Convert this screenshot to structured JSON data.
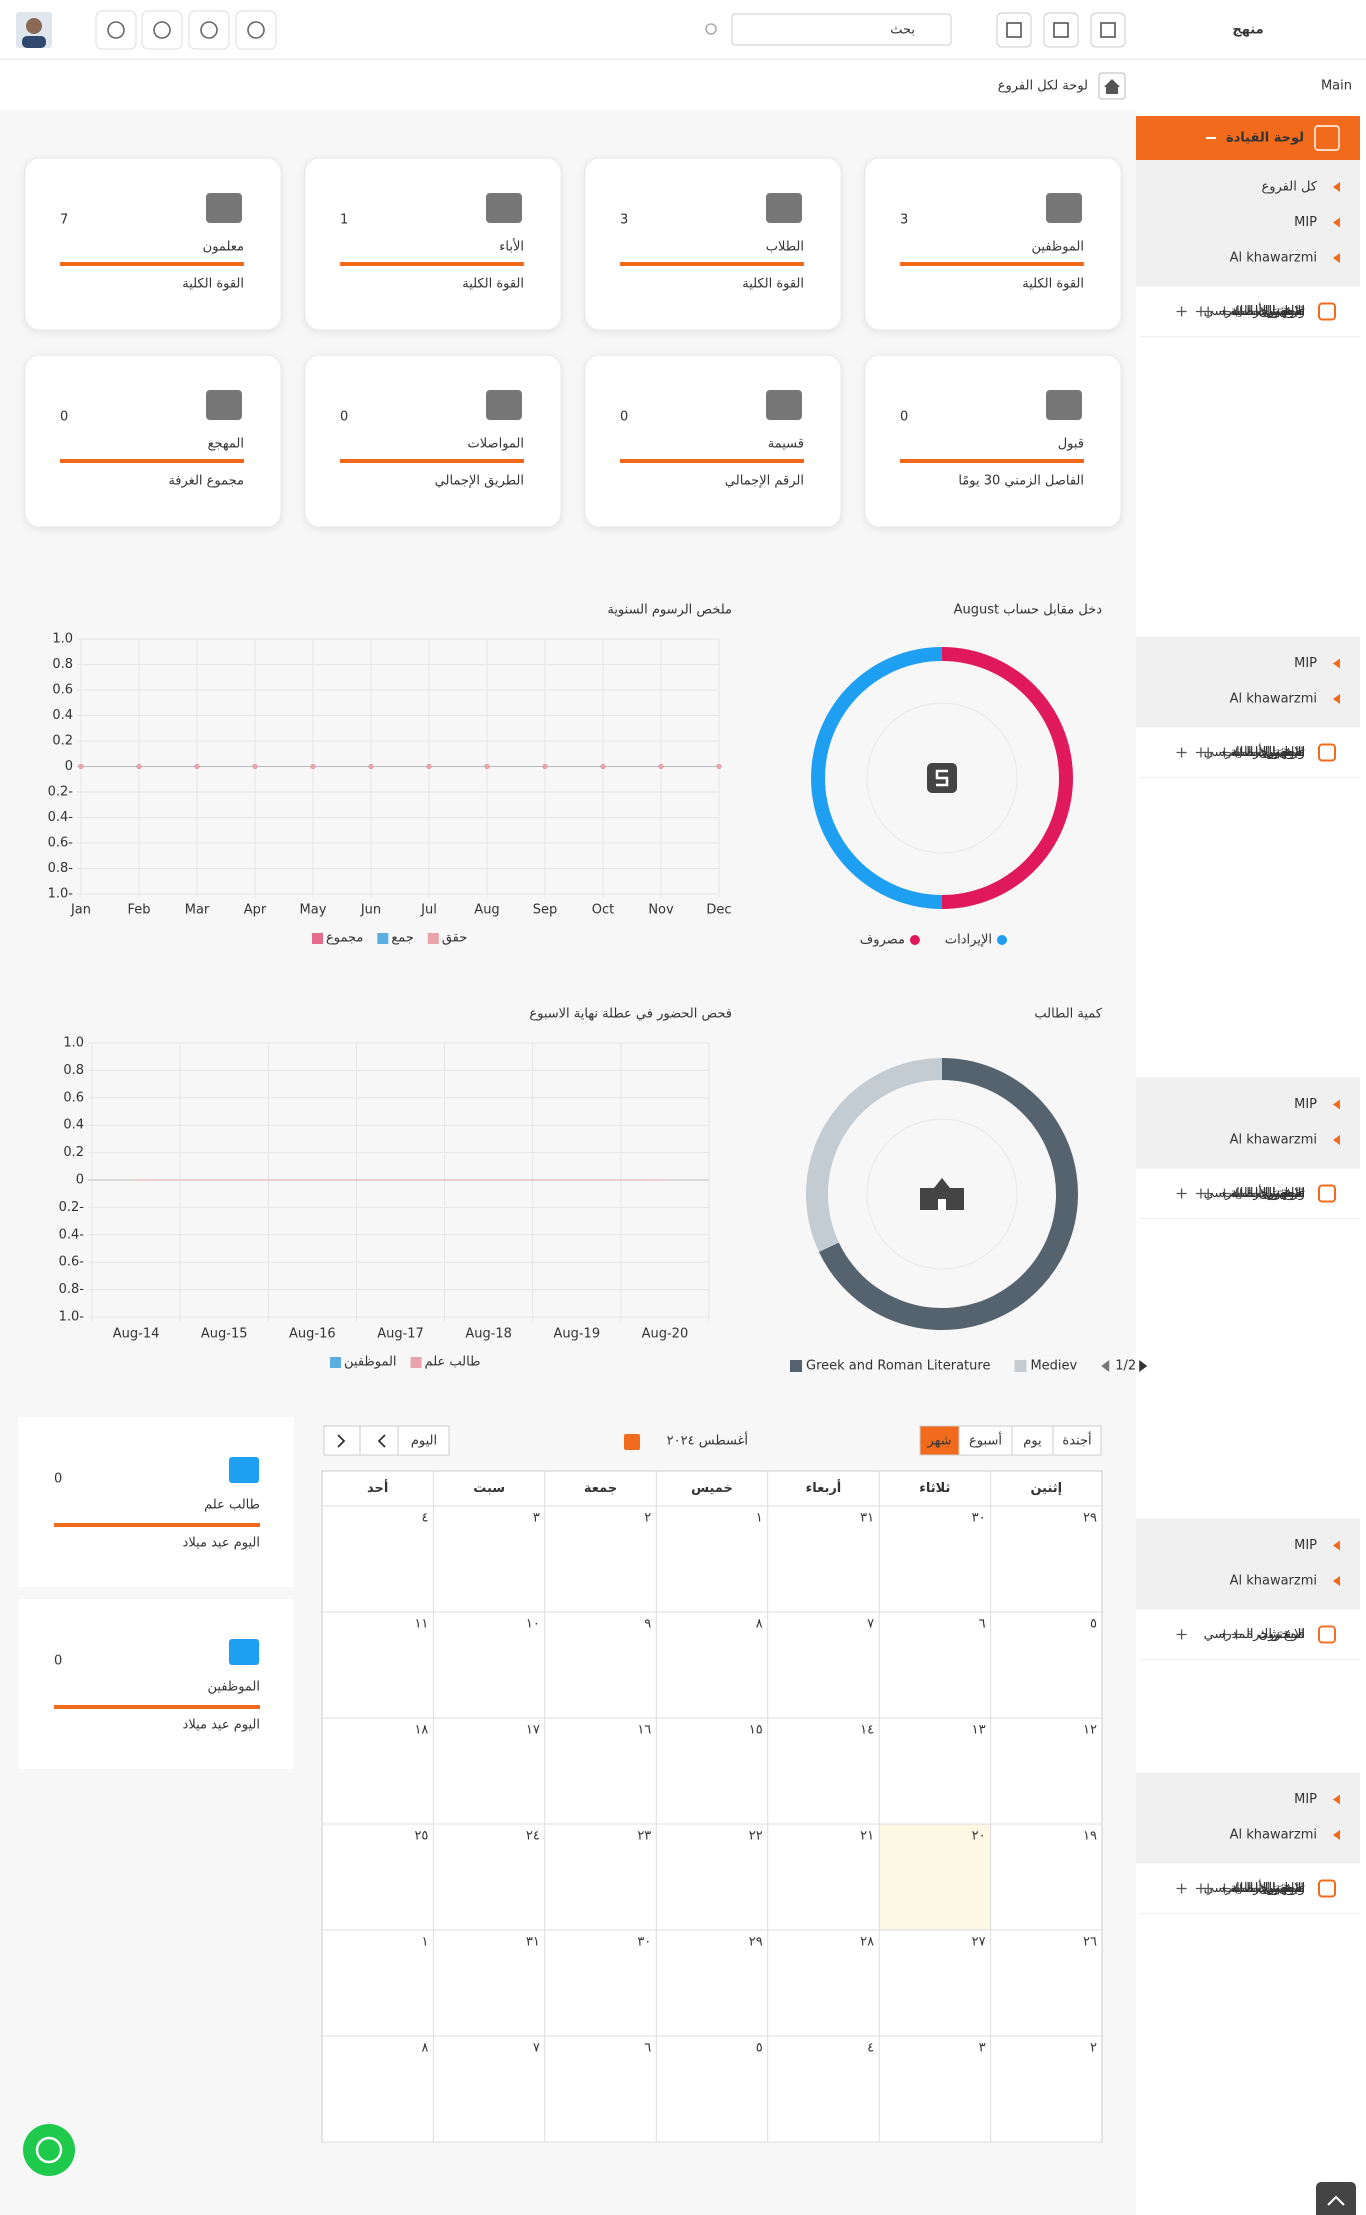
{
  "header": {
    "search_placeholder": "بحث",
    "logo": "منهج"
  },
  "breadcrumb": {
    "title": "لوحة لكل الفروع",
    "root": "Main"
  },
  "sidebar": {
    "dashboard": "لوحة القيادة",
    "all_branches": "كل الفروع",
    "groups": [
      {
        "branches": [
          "MIP",
          "Al khawarzmi"
        ],
        "items": [
          "المخزون",
          "فرع شجرة",
          "الاشتراك المدرسي",
          "واجهة الأمامية",
          "استقبال",
          "قبول",
          "تفاصيل الطالب"
        ]
      },
      {
        "branches": [
          "MIP",
          "Al khawarzmi"
        ],
        "items": [
          "المخزون",
          "فرع شجرة",
          "الاشتراك المدرسي",
          "واجهة الأمامية",
          "استقبال",
          "قبول",
          "تفاصيل الطالب"
        ]
      },
      {
        "branches": [
          "MIP",
          "Al khawarzmi"
        ],
        "items": [
          "المخزون",
          "فرع شجرة",
          "الاشتراك المدرسي",
          "واجهة الأمامية",
          "استقبال",
          "قبول",
          "تفاصيل الطالب"
        ]
      },
      {
        "branches": [
          "MIP",
          "Al khawarzmi"
        ],
        "items": [
          "المخزون",
          "فرع شجرة",
          "الاشتراك المدرسي"
        ]
      },
      {
        "branches": [
          "MIP",
          "Al khawarzmi"
        ],
        "items": [
          "المخزون",
          "فرع شجرة",
          "الاشتراك المدرسي",
          "واجهة الأمامية",
          "استقبال",
          "قبول",
          "تفاصيل الطالب"
        ]
      }
    ]
  },
  "stat_cards": [
    {
      "label": "الموظفين",
      "value": "3",
      "sublabel": "القوة الكلية"
    },
    {
      "label": "الطلاب",
      "value": "3",
      "sublabel": "القوة الكلية"
    },
    {
      "label": "الأباء",
      "value": "1",
      "sublabel": "القوة الكلية"
    },
    {
      "label": "معلمون",
      "value": "7",
      "sublabel": "القوة الكلية"
    },
    {
      "label": "قبول",
      "value": "0",
      "sublabel": "الفاصل الزمني 30 يومًا"
    },
    {
      "label": "قسيمة",
      "value": "0",
      "sublabel": "الرقم الإجمالي"
    },
    {
      "label": "المواصلات",
      "value": "0",
      "sublabel": "الطريق الإجمالي"
    },
    {
      "label": "المهجع",
      "value": "0",
      "sublabel": "مجموع الغرفة"
    }
  ],
  "chart_data": [
    {
      "type": "donut",
      "title": "دخل مقابل حساب August",
      "categories": [
        "مصروف",
        "الإيرادات"
      ],
      "values": [
        50,
        50
      ],
      "colors": [
        "#e0195d",
        "#1e9ff2"
      ]
    },
    {
      "type": "line",
      "title": "ملخص الرسوم السنوية",
      "categories": [
        "Jan",
        "Feb",
        "Mar",
        "Apr",
        "May",
        "Jun",
        "Jul",
        "Aug",
        "Sep",
        "Oct",
        "Nov",
        "Dec"
      ],
      "series": [
        {
          "name": "مجموع",
          "color": "#e46d8e",
          "values": [
            0,
            0,
            0,
            0,
            0,
            0,
            0,
            0,
            0,
            0,
            0,
            0
          ]
        },
        {
          "name": "جمع",
          "color": "#5aaee0",
          "values": [
            0,
            0,
            0,
            0,
            0,
            0,
            0,
            0,
            0,
            0,
            0,
            0
          ]
        },
        {
          "name": "حقق",
          "color": "#e8a3ab",
          "values": [
            0,
            0,
            0,
            0,
            0,
            0,
            0,
            0,
            0,
            0,
            0,
            0
          ]
        }
      ],
      "ylim": [
        -1,
        1
      ],
      "yticks": [
        {
          "value": 1,
          "label": "1.0"
        },
        0.8,
        0.6,
        0.4,
        0.2,
        0,
        {
          "value": -0.2,
          "label": "0.2-"
        },
        {
          "value": -0.4,
          "label": "0.4-"
        },
        {
          "value": -0.6,
          "label": "0.6-"
        },
        {
          "value": -0.8,
          "label": "0.8-"
        },
        {
          "value": -1,
          "label": "1.0-"
        }
      ],
      "grid": true
    },
    {
      "type": "line",
      "title": "فحص الحضور في عطلة نهاية الاسبوع",
      "categories": [
        "Aug-14",
        "Aug-15",
        "Aug-16",
        "Aug-17",
        "Aug-18",
        "Aug-19",
        "Aug-20"
      ],
      "series": [
        {
          "name": "الموظفين",
          "color": "#5aaee0",
          "values": [
            0,
            0,
            0,
            0,
            0,
            0,
            0
          ]
        },
        {
          "name": "طالب علم",
          "color": "#e8a3ab",
          "values": [
            0,
            0,
            0,
            0,
            0,
            0,
            0
          ]
        }
      ],
      "ylim": [
        -1,
        1
      ],
      "yticks": [
        {
          "value": 1,
          "label": "1.0"
        },
        0.8,
        0.6,
        0.4,
        0.2,
        0,
        {
          "value": -0.2,
          "label": "0.2-"
        },
        {
          "value": -0.4,
          "label": "0.4-"
        },
        {
          "value": -0.6,
          "label": "0.6-"
        },
        {
          "value": -0.8,
          "label": "0.8-"
        },
        {
          "value": -1,
          "label": "1.0-"
        }
      ],
      "grid": true
    },
    {
      "type": "donut",
      "title": "كمية الطالب",
      "categories": [
        "Greek and Roman Literature",
        "Mediev"
      ],
      "values": [
        68,
        32
      ],
      "colors": [
        "#55636e",
        "#c4ccd3"
      ],
      "legend_page": "1/2"
    }
  ],
  "birthday_cards": [
    {
      "value": "0",
      "label": "طالب علم",
      "sublabel": "اليوم عيد ميلاد"
    },
    {
      "value": "0",
      "label": "الموظفين",
      "sublabel": "اليوم عيد ميلاد"
    }
  ],
  "calendar": {
    "title": "أغسطس ٢٠٢٤",
    "today_button": "اليوم",
    "views": [
      "شهر",
      "أسبوع",
      "يوم",
      "أجندة"
    ],
    "weekdays": [
      "إثنين",
      "ثلاثاء",
      "أربعاء",
      "خميس",
      "جمعة",
      "سبت",
      "أحد"
    ],
    "weeks": [
      [
        "٢٩",
        "٣٠",
        "٣١",
        "١",
        "٢",
        "٣",
        "٤"
      ],
      [
        "٥",
        "٦",
        "٧",
        "٨",
        "٩",
        "١٠",
        "١١"
      ],
      [
        "١٢",
        "١٣",
        "١٤",
        "١٥",
        "١٦",
        "١٧",
        "١٨"
      ],
      [
        "١٩",
        "٢٠",
        "٢١",
        "٢٢",
        "٢٣",
        "٢٤",
        "٢٥"
      ],
      [
        "٢٦",
        "٢٧",
        "٢٨",
        "٢٩",
        "٣٠",
        "٣١",
        "١"
      ],
      [
        "٢",
        "٣",
        "٤",
        "٥",
        "٦",
        "٧",
        "٨"
      ]
    ]
  }
}
